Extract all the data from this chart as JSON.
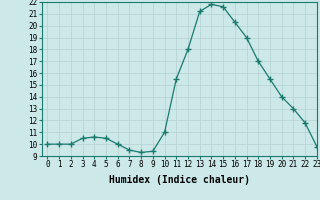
{
  "x": [
    0,
    1,
    2,
    3,
    4,
    5,
    6,
    7,
    8,
    9,
    10,
    11,
    12,
    13,
    14,
    15,
    16,
    17,
    18,
    19,
    20,
    21,
    22,
    23
  ],
  "y": [
    10,
    10,
    10,
    10.5,
    10.6,
    10.5,
    10,
    9.5,
    9.3,
    9.4,
    11,
    15.5,
    18,
    21.2,
    21.8,
    21.6,
    20.3,
    19,
    17,
    15.5,
    14,
    13,
    11.8,
    9.8
  ],
  "line_color": "#1a7a6e",
  "bg_color": "#cce8e8",
  "grid_color": "#b8d4d4",
  "xlabel": "Humidex (Indice chaleur)",
  "ylim": [
    9,
    22
  ],
  "xlim": [
    -0.5,
    23
  ],
  "yticks": [
    9,
    10,
    11,
    12,
    13,
    14,
    15,
    16,
    17,
    18,
    19,
    20,
    21,
    22
  ],
  "xticks": [
    0,
    1,
    2,
    3,
    4,
    5,
    6,
    7,
    8,
    9,
    10,
    11,
    12,
    13,
    14,
    15,
    16,
    17,
    18,
    19,
    20,
    21,
    22,
    23
  ],
  "xlabel_fontsize": 7,
  "tick_fontsize": 5.5
}
